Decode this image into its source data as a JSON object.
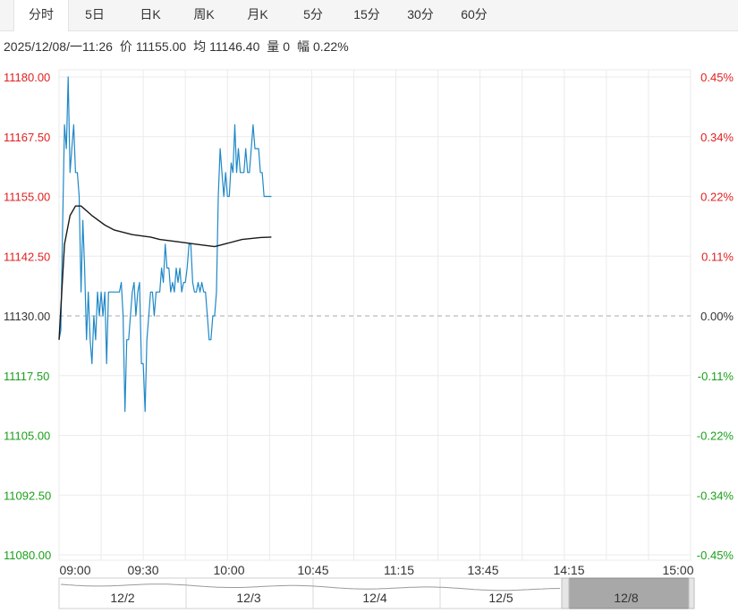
{
  "tabs": [
    {
      "label": "分时",
      "active": true
    },
    {
      "label": "5日",
      "active": false
    },
    {
      "label": "日K",
      "active": false
    },
    {
      "label": "周K",
      "active": false
    },
    {
      "label": "月K",
      "active": false
    },
    {
      "label": "5分",
      "active": false
    },
    {
      "label": "15分",
      "active": false
    },
    {
      "label": "30分",
      "active": false
    },
    {
      "label": "60分",
      "active": false
    }
  ],
  "info": {
    "datetime": "2025/12/08/一11:26",
    "price_label": "价",
    "price": "11155.00",
    "avg_label": "均",
    "avg": "11146.40",
    "vol_label": "量",
    "vol": "0",
    "amp_label": "幅",
    "amp": "0.22%"
  },
  "colors": {
    "up": "#e02020",
    "down": "#1aa01a",
    "price_line": "#1f88c7",
    "avg_line": "#1a1a1a",
    "grid": "#ebebeb",
    "base": "#aaaaaa"
  },
  "chart_data": {
    "type": "line",
    "prev_close": 11130.0,
    "ylim": [
      11080.0,
      11180.0
    ],
    "y_ticks_left": [
      "11180.00",
      "11167.50",
      "11155.00",
      "11142.50",
      "11130.00",
      "11117.50",
      "11105.00",
      "11092.50",
      "11080.00"
    ],
    "y_ticks_right": [
      "0.45%",
      "0.34%",
      "0.22%",
      "0.11%",
      "0.00%",
      "-0.11%",
      "-0.22%",
      "-0.34%",
      "-0.45%"
    ],
    "x_ticks": [
      "09:00",
      "09:30",
      "10:00",
      "10:45",
      "11:15",
      "13:45",
      "14:15",
      "15:00"
    ],
    "x_unit": "minutes since 09:00, 345 total",
    "series": [
      {
        "name": "price",
        "values": [
          [
            0,
            11125
          ],
          [
            1,
            11127
          ],
          [
            2,
            11150
          ],
          [
            3,
            11170
          ],
          [
            4,
            11165
          ],
          [
            5,
            11180
          ],
          [
            6,
            11160
          ],
          [
            7,
            11165
          ],
          [
            8,
            11170
          ],
          [
            9,
            11160
          ],
          [
            10,
            11160
          ],
          [
            11,
            11155
          ],
          [
            12,
            11135
          ],
          [
            13,
            11150
          ],
          [
            14,
            11140
          ],
          [
            15,
            11125
          ],
          [
            16,
            11135
          ],
          [
            17,
            11125
          ],
          [
            18,
            11120
          ],
          [
            19,
            11130
          ],
          [
            20,
            11125
          ],
          [
            21,
            11135
          ],
          [
            22,
            11130
          ],
          [
            23,
            11135
          ],
          [
            24,
            11130
          ],
          [
            25,
            11135
          ],
          [
            26,
            11120
          ],
          [
            27,
            11135
          ],
          [
            28,
            11135
          ],
          [
            29,
            11135
          ],
          [
            30,
            11135
          ],
          [
            31,
            11135
          ],
          [
            32,
            11135
          ],
          [
            33,
            11135
          ],
          [
            34,
            11137
          ],
          [
            35,
            11130
          ],
          [
            36,
            11110
          ],
          [
            37,
            11125
          ],
          [
            38,
            11125
          ],
          [
            39,
            11130
          ],
          [
            40,
            11135
          ],
          [
            41,
            11137
          ],
          [
            42,
            11130
          ],
          [
            43,
            11135
          ],
          [
            44,
            11137
          ],
          [
            45,
            11120
          ],
          [
            46,
            11120
          ],
          [
            47,
            11110
          ],
          [
            48,
            11125
          ],
          [
            49,
            11130
          ],
          [
            50,
            11135
          ],
          [
            51,
            11135
          ],
          [
            52,
            11130
          ],
          [
            53,
            11135
          ],
          [
            54,
            11135
          ],
          [
            55,
            11135
          ],
          [
            56,
            11140
          ],
          [
            57,
            11137
          ],
          [
            58,
            11145
          ],
          [
            59,
            11140
          ],
          [
            60,
            11140
          ],
          [
            61,
            11135
          ],
          [
            62,
            11137
          ],
          [
            63,
            11135
          ],
          [
            64,
            11140
          ],
          [
            65,
            11137
          ],
          [
            66,
            11140
          ],
          [
            67,
            11135
          ],
          [
            68,
            11137
          ],
          [
            69,
            11137
          ],
          [
            70,
            11140
          ],
          [
            71,
            11145
          ],
          [
            72,
            11145
          ],
          [
            73,
            11137
          ],
          [
            74,
            11135
          ],
          [
            75,
            11135
          ],
          [
            76,
            11137
          ],
          [
            77,
            11135
          ],
          [
            78,
            11137
          ],
          [
            79,
            11135
          ],
          [
            80,
            11135
          ],
          [
            81,
            11130
          ],
          [
            82,
            11125
          ],
          [
            83,
            11125
          ],
          [
            84,
            11130
          ],
          [
            85,
            11130
          ],
          [
            86,
            11135
          ],
          [
            87,
            11155
          ],
          [
            88,
            11165
          ],
          [
            89,
            11160
          ],
          [
            90,
            11155
          ],
          [
            91,
            11160
          ],
          [
            92,
            11155
          ],
          [
            93,
            11155
          ],
          [
            94,
            11162
          ],
          [
            95,
            11160
          ],
          [
            96,
            11170
          ],
          [
            97,
            11160
          ],
          [
            98,
            11165
          ],
          [
            99,
            11160
          ],
          [
            100,
            11160
          ],
          [
            101,
            11160
          ],
          [
            102,
            11165
          ],
          [
            103,
            11160
          ],
          [
            104,
            11160
          ],
          [
            105,
            11165
          ],
          [
            106,
            11170
          ],
          [
            107,
            11165
          ],
          [
            108,
            11165
          ],
          [
            109,
            11165
          ],
          [
            110,
            11160
          ],
          [
            111,
            11160
          ],
          [
            112,
            11155
          ],
          [
            113,
            11155
          ],
          [
            114,
            11155
          ],
          [
            115,
            11155
          ],
          [
            116,
            11155
          ]
        ]
      },
      {
        "name": "avg",
        "values": [
          [
            0,
            11125
          ],
          [
            3,
            11145
          ],
          [
            6,
            11151
          ],
          [
            9,
            11153
          ],
          [
            12,
            11153
          ],
          [
            18,
            11151
          ],
          [
            25,
            11149
          ],
          [
            30,
            11148
          ],
          [
            40,
            11147
          ],
          [
            50,
            11146.5
          ],
          [
            55,
            11146
          ],
          [
            65,
            11145.5
          ],
          [
            75,
            11145
          ],
          [
            85,
            11144.5
          ],
          [
            90,
            11145
          ],
          [
            100,
            11146
          ],
          [
            110,
            11146.4
          ],
          [
            116,
            11146.5
          ]
        ]
      }
    ]
  },
  "navigator": {
    "labels": [
      "12/2",
      "12/3",
      "12/4",
      "12/5",
      "12/8"
    ]
  }
}
